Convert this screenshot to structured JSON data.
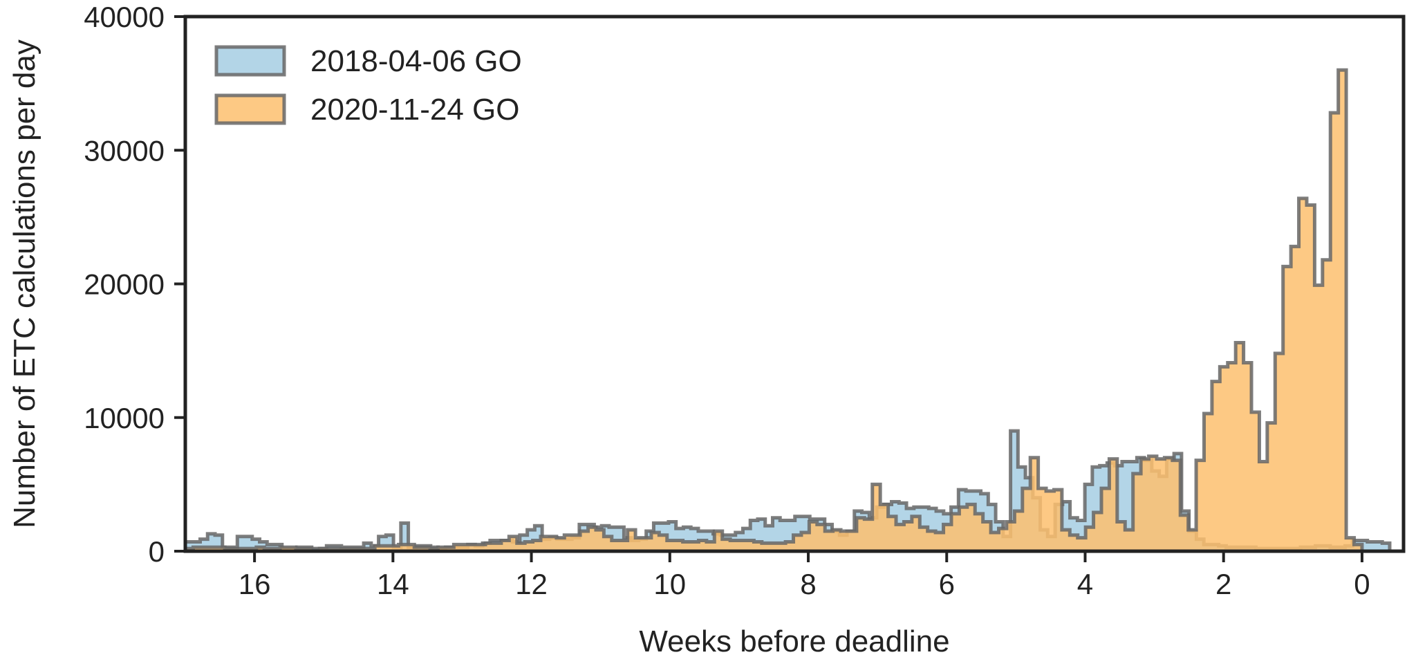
{
  "chart_data": {
    "type": "histogram",
    "xlabel": "Weeks before deadline",
    "ylabel": "Number of ETC calculations per day",
    "xlim": [
      17.0,
      -0.6
    ],
    "x_reversed": true,
    "ylim": [
      0,
      40000
    ],
    "xticks": [
      16,
      14,
      12,
      10,
      8,
      6,
      4,
      2,
      0
    ],
    "yticks": [
      0,
      10000,
      20000,
      30000,
      40000
    ],
    "grid": false,
    "legend_position": "top-left",
    "bin_width_weeks": 0.142857,
    "series": [
      {
        "name": "2018-04-06 GO",
        "color": "#a6cee3",
        "values": [
          700,
          700,
          900,
          1300,
          1200,
          300,
          300,
          1100,
          1100,
          900,
          700,
          500,
          500,
          200,
          200,
          300,
          300,
          200,
          200,
          400,
          400,
          300,
          300,
          300,
          600,
          400,
          1100,
          1200,
          300,
          2100,
          300,
          400,
          400,
          300,
          200,
          300,
          300,
          300,
          500,
          400,
          600,
          800,
          800,
          800,
          700,
          1200,
          1600,
          1900,
          900,
          1000,
          900,
          900,
          1000,
          2000,
          2000,
          1800,
          1900,
          1800,
          1800,
          1000,
          800,
          900,
          1500,
          2100,
          2100,
          2200,
          1700,
          1800,
          1700,
          1500,
          1500,
          1300,
          1200,
          1200,
          1400,
          1700,
          2300,
          2400,
          1900,
          2500,
          2300,
          2300,
          2600,
          2600,
          2400,
          2400,
          2000,
          1500,
          1200,
          1500,
          3000,
          2900,
          2500,
          3300,
          3500,
          3700,
          3600,
          3200,
          3300,
          3300,
          3200,
          3000,
          2800,
          3300,
          4600,
          4500,
          4500,
          4300,
          3500,
          2200,
          1100,
          9000,
          6300,
          5500,
          4000,
          1600,
          1100,
          3500,
          3700,
          2500,
          2300,
          5000,
          6300,
          6400,
          6600,
          6400,
          6700,
          6700,
          7000,
          6800,
          6000,
          5600,
          6900,
          7300,
          3000,
          1500,
          900,
          500,
          500,
          400,
          300,
          300,
          300,
          300,
          200,
          200,
          200,
          200,
          200,
          200,
          300,
          300,
          400,
          400,
          300,
          300,
          400,
          800,
          800,
          700,
          700,
          600
        ]
      },
      {
        "name": "2020-11-24 GO",
        "color": "#fdbf6f",
        "values": [
          200,
          300,
          300,
          300,
          300,
          200,
          200,
          200,
          200,
          300,
          200,
          200,
          300,
          300,
          200,
          200,
          100,
          200,
          200,
          200,
          200,
          200,
          200,
          200,
          400,
          400,
          400,
          500,
          500,
          300,
          300,
          200,
          300,
          300,
          500,
          500,
          500,
          500,
          600,
          600,
          800,
          1100,
          600,
          700,
          800,
          1100,
          1100,
          1000,
          1200,
          1200,
          1500,
          1800,
          1600,
          1100,
          800,
          800,
          1600,
          1000,
          1000,
          1400,
          1200,
          800,
          800,
          700,
          700,
          800,
          700,
          1500,
          900,
          800,
          800,
          800,
          700,
          600,
          600,
          600,
          700,
          1200,
          1400,
          2200,
          2000,
          1500,
          1600,
          1500,
          1500,
          2500,
          2400,
          5000,
          3500,
          2600,
          2000,
          2200,
          2600,
          1800,
          1500,
          1400,
          2000,
          2800,
          3300,
          3500,
          2800,
          2200,
          1400,
          1700,
          2200,
          3000,
          4700,
          7000,
          4700,
          4500,
          4600,
          1600,
          1200,
          1000,
          1800,
          2900,
          4700,
          6900,
          2200,
          1600,
          5800,
          6900,
          7100,
          6900,
          7000,
          6800,
          2700,
          1600,
          6800,
          10300,
          12700,
          13800,
          14100,
          15600,
          14100,
          10400,
          6700,
          9600,
          14800,
          21300,
          22800,
          26400,
          25900,
          19900,
          21800,
          32800,
          36000,
          1000,
          500
        ]
      }
    ],
    "series_end_weeks": [
      -0.4,
      0.0
    ],
    "series_start_weeks": [
      17.0,
      17.0
    ]
  },
  "colors": {
    "series_1_fill": "#a6cee3",
    "series_2_fill": "#fdbf6f",
    "edge": "#666666",
    "axis": "#222222"
  }
}
